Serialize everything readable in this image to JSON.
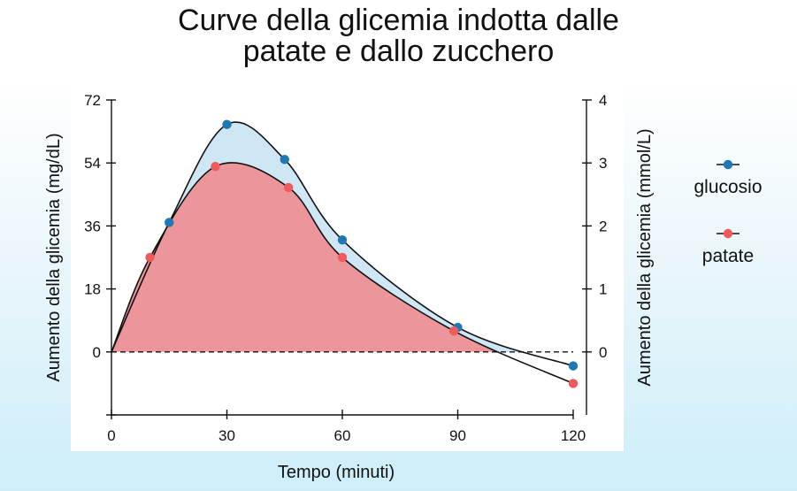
{
  "chart_data": {
    "type": "area",
    "title_lines": [
      "Curve della glicemia indotta dalle",
      "patate e dallo zucchero"
    ],
    "xlabel": "Tempo (minuti)",
    "ylabel_left": "Aumento della glicemia (mg/dL)",
    "ylabel_right": "Aumento della glicemia (mmol/L)",
    "xlim": [
      0,
      120
    ],
    "ylim_left": [
      -18,
      72
    ],
    "ylim_right": [
      -1,
      4
    ],
    "xticks": [
      0,
      30,
      60,
      90,
      120
    ],
    "yticks_left": [
      0,
      18,
      36,
      54,
      72
    ],
    "yticks_right": [
      0,
      1,
      2,
      3,
      4
    ],
    "legend_position": "right",
    "series": [
      {
        "name": "glucosio",
        "color": "#1f77b4",
        "fill": "#cfe6f5",
        "points": [
          [
            15,
            37
          ],
          [
            30,
            65
          ],
          [
            45,
            55
          ],
          [
            60,
            32
          ],
          [
            90,
            7
          ],
          [
            120,
            -4
          ]
        ]
      },
      {
        "name": "patate",
        "color": "#f05a5a",
        "fill": "#ec969c",
        "points": [
          [
            10,
            27
          ],
          [
            27,
            53
          ],
          [
            46,
            47
          ],
          [
            60,
            27
          ],
          [
            89,
            6
          ],
          [
            120,
            -9
          ]
        ]
      }
    ]
  }
}
